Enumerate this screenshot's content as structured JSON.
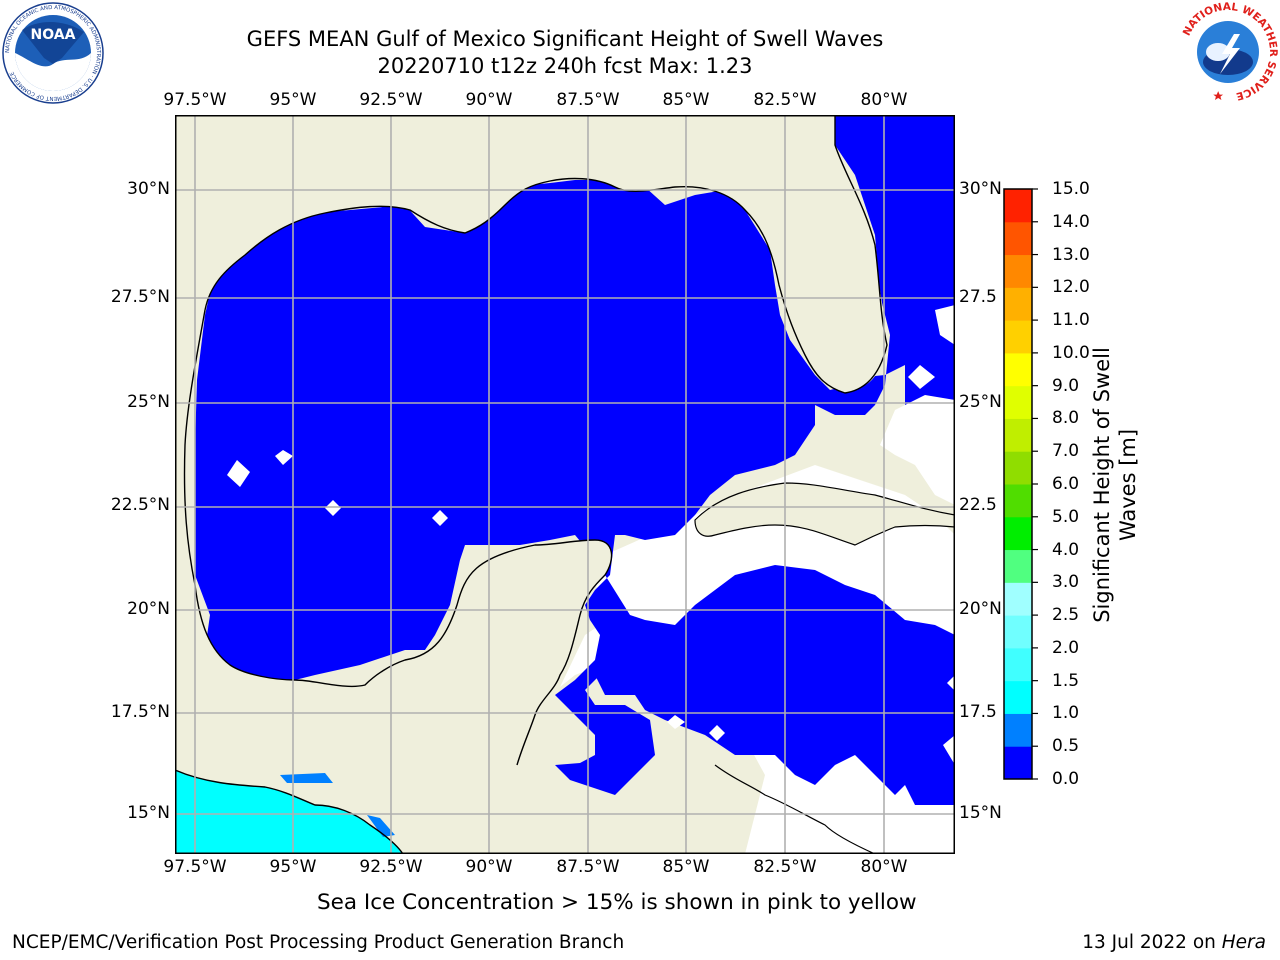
{
  "header": {
    "title_line1": "GEFS MEAN Gulf of Mexico Significant Height of Swell Waves",
    "title_line2": "20220710 t12z 240h fcst   Max: 1.23"
  },
  "logos": {
    "noaa_text": "NOAA",
    "noaa_ring_text": "NATIONAL OCEANIC AND ATMOSPHERIC ADMINISTRATION · U.S. DEPARTMENT OF COMMERCE",
    "nws_ring_text": "NATIONAL WEATHER SERVICE"
  },
  "map": {
    "lon_labels": [
      "97.5°W",
      "95°W",
      "92.5°W",
      "90°W",
      "87.5°W",
      "85°W",
      "82.5°W",
      "80°W"
    ],
    "lat_labels_left": [
      "30°N",
      "27.5°N",
      "25°N",
      "22.5°N",
      "20°N",
      "17.5°N",
      "15°N"
    ],
    "lat_labels_right": [
      "30°N",
      "27.5",
      "25°N",
      "22.5",
      "20°N",
      "17.5",
      "15°N"
    ],
    "colors": {
      "land": "#efefdc",
      "sea_low": "#0000ff",
      "sea_mid": "#00ffff",
      "sea_edge": "#0080ff",
      "grid": "#b0b0b0"
    }
  },
  "colorbar": {
    "title": "Significant Height of Swell Waves [m]",
    "title_line1": "Significant Height of Swell",
    "title_line2": "Waves [m]",
    "ticks": [
      "0.0",
      "0.5",
      "1.0",
      "1.5",
      "2.0",
      "2.5",
      "3.0",
      "4.0",
      "5.0",
      "6.0",
      "7.0",
      "8.0",
      "9.0",
      "10.0",
      "11.0",
      "12.0",
      "13.0",
      "14.0",
      "15.0"
    ],
    "colors": [
      "#0000ff",
      "#0080ff",
      "#00ffff",
      "#40ffff",
      "#70ffff",
      "#a0ffff",
      "#50ff80",
      "#00ee00",
      "#50dd00",
      "#90dd00",
      "#c0ee00",
      "#e0ff00",
      "#ffff00",
      "#ffd000",
      "#ffb000",
      "#ff8800",
      "#ff5500",
      "#ff2200",
      "#ff0000"
    ]
  },
  "notes": {
    "sea_ice": "Sea Ice Concentration > 15% is shown in pink to yellow",
    "branch": "NCEP/EMC/Verification Post Processing Product Generation Branch",
    "date_prefix": "13 Jul 2022 on ",
    "date_host": "Hera"
  }
}
